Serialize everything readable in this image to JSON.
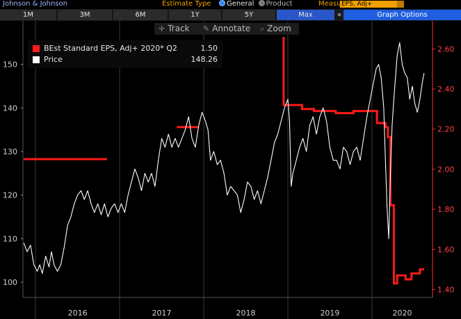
{
  "header": {
    "company": "Johnson & Johnson",
    "estimate_type_label": "Estimate Type",
    "estimate_options": [
      "General",
      "Product"
    ],
    "estimate_selected": "General",
    "measure_label": "Measure",
    "measure_value": "EPS, Adj+"
  },
  "range_buttons": [
    {
      "label": "1M",
      "active": false
    },
    {
      "label": "3M",
      "active": false
    },
    {
      "label": "6M",
      "active": false
    },
    {
      "label": "1Y",
      "active": false
    },
    {
      "label": "5Y",
      "active": false
    },
    {
      "label": "Max",
      "active": true
    }
  ],
  "graph_options_label": "Graph Options",
  "collapse_glyph": "«",
  "toolbar": {
    "track_label": "Track",
    "annotate_label": "Annotate",
    "zoom_label": "Zoom",
    "track_icon": "crosshair-icon",
    "annotate_icon": "pencil-icon",
    "zoom_icon": "magnifier-icon"
  },
  "legend": {
    "eps_label": "BEst Standard EPS, Adj+ 2020* Q2",
    "eps_value": "1.50",
    "price_label": "Price",
    "price_value": "148.26"
  },
  "colors": {
    "eps": "#ff1a1a",
    "price": "#ffffff",
    "right_axis": "#ff3333",
    "accent_orange": "#f0a000",
    "active_blue": "#1f5fe0"
  },
  "chart_data": {
    "type": "line",
    "x_axis": {
      "labels": [
        "2016",
        "2017",
        "2018",
        "2019",
        "2020"
      ],
      "range": [
        2015.85,
        2020.72
      ]
    },
    "left_axis": {
      "ticks": [
        100,
        110,
        120,
        130,
        140,
        150
      ],
      "range": [
        96.5,
        160
      ]
    },
    "right_axis": {
      "ticks": [
        "1.40",
        "1.60",
        "1.80",
        "2.00",
        "2.20",
        "2.40",
        "2.60"
      ],
      "range": [
        1.36,
        2.74
      ]
    },
    "grid": false,
    "legend_position": "top-left",
    "series": [
      {
        "name": "BEst Standard EPS, Adj+ 2020* Q2",
        "axis": "right",
        "style": "step",
        "segments": [
          [
            [
              2015.86,
              2.05
            ],
            [
              2016.85,
              2.05
            ]
          ],
          [
            [
              2017.68,
              2.21
            ],
            [
              2017.94,
              2.21
            ]
          ],
          [
            [
              2018.95,
              2.66
            ],
            [
              2018.95,
              2.32
            ],
            [
              2019.17,
              2.32
            ],
            [
              2019.17,
              2.3
            ],
            [
              2019.31,
              2.3
            ],
            [
              2019.31,
              2.29
            ],
            [
              2019.57,
              2.29
            ],
            [
              2019.57,
              2.28
            ],
            [
              2019.78,
              2.28
            ],
            [
              2019.78,
              2.29
            ],
            [
              2020.06,
              2.29
            ],
            [
              2020.06,
              2.23
            ],
            [
              2020.16,
              2.23
            ],
            [
              2020.16,
              2.21
            ],
            [
              2020.19,
              2.21
            ],
            [
              2020.19,
              2.16
            ],
            [
              2020.22,
              2.16
            ],
            [
              2020.22,
              1.82
            ],
            [
              2020.26,
              1.82
            ],
            [
              2020.26,
              1.43
            ],
            [
              2020.3,
              1.43
            ],
            [
              2020.3,
              1.47
            ],
            [
              2020.4,
              1.47
            ],
            [
              2020.4,
              1.45
            ],
            [
              2020.47,
              1.45
            ],
            [
              2020.47,
              1.48
            ],
            [
              2020.57,
              1.48
            ],
            [
              2020.57,
              1.5
            ],
            [
              2020.62,
              1.5
            ]
          ]
        ]
      },
      {
        "name": "Price",
        "axis": "left",
        "style": "line",
        "points": [
          [
            2015.86,
            109
          ],
          [
            2015.9,
            107
          ],
          [
            2015.94,
            108.5
          ],
          [
            2015.98,
            104
          ],
          [
            2016.02,
            102.5
          ],
          [
            2016.05,
            104
          ],
          [
            2016.08,
            102
          ],
          [
            2016.12,
            106
          ],
          [
            2016.16,
            103.5
          ],
          [
            2016.19,
            107
          ],
          [
            2016.22,
            104
          ],
          [
            2016.26,
            102.5
          ],
          [
            2016.3,
            104
          ],
          [
            2016.34,
            108
          ],
          [
            2016.38,
            113
          ],
          [
            2016.42,
            115
          ],
          [
            2016.46,
            118
          ],
          [
            2016.5,
            120
          ],
          [
            2016.54,
            121
          ],
          [
            2016.58,
            119
          ],
          [
            2016.62,
            121
          ],
          [
            2016.66,
            118
          ],
          [
            2016.7,
            116
          ],
          [
            2016.74,
            118
          ],
          [
            2016.78,
            115.5
          ],
          [
            2016.82,
            118
          ],
          [
            2016.86,
            115
          ],
          [
            2016.9,
            117
          ],
          [
            2016.94,
            118
          ],
          [
            2016.98,
            116
          ],
          [
            2017.02,
            118
          ],
          [
            2017.06,
            116
          ],
          [
            2017.1,
            120
          ],
          [
            2017.14,
            123
          ],
          [
            2017.18,
            126
          ],
          [
            2017.22,
            124
          ],
          [
            2017.26,
            121
          ],
          [
            2017.3,
            125
          ],
          [
            2017.34,
            123
          ],
          [
            2017.38,
            125
          ],
          [
            2017.42,
            122
          ],
          [
            2017.46,
            128
          ],
          [
            2017.5,
            133
          ],
          [
            2017.54,
            131
          ],
          [
            2017.58,
            134
          ],
          [
            2017.62,
            131
          ],
          [
            2017.66,
            133
          ],
          [
            2017.7,
            131
          ],
          [
            2017.74,
            133
          ],
          [
            2017.78,
            135
          ],
          [
            2017.82,
            138
          ],
          [
            2017.86,
            133
          ],
          [
            2017.9,
            131
          ],
          [
            2017.94,
            136
          ],
          [
            2017.98,
            139
          ],
          [
            2018.02,
            137
          ],
          [
            2018.05,
            135
          ],
          [
            2018.08,
            128
          ],
          [
            2018.12,
            130
          ],
          [
            2018.16,
            127
          ],
          [
            2018.2,
            128
          ],
          [
            2018.24,
            125
          ],
          [
            2018.28,
            120
          ],
          [
            2018.32,
            122
          ],
          [
            2018.36,
            121
          ],
          [
            2018.4,
            120
          ],
          [
            2018.44,
            116
          ],
          [
            2018.48,
            119
          ],
          [
            2018.52,
            123
          ],
          [
            2018.56,
            122
          ],
          [
            2018.6,
            119
          ],
          [
            2018.64,
            121
          ],
          [
            2018.68,
            118
          ],
          [
            2018.72,
            121
          ],
          [
            2018.76,
            124
          ],
          [
            2018.8,
            128
          ],
          [
            2018.84,
            132
          ],
          [
            2018.88,
            134
          ],
          [
            2018.92,
            137
          ],
          [
            2018.96,
            140
          ],
          [
            2019.0,
            142
          ],
          [
            2019.02,
            137
          ],
          [
            2019.04,
            122
          ],
          [
            2019.06,
            125
          ],
          [
            2019.1,
            128
          ],
          [
            2019.14,
            131
          ],
          [
            2019.18,
            133
          ],
          [
            2019.22,
            130
          ],
          [
            2019.26,
            136
          ],
          [
            2019.3,
            138
          ],
          [
            2019.34,
            134
          ],
          [
            2019.38,
            138
          ],
          [
            2019.42,
            140
          ],
          [
            2019.46,
            137
          ],
          [
            2019.5,
            131
          ],
          [
            2019.54,
            128
          ],
          [
            2019.58,
            128
          ],
          [
            2019.62,
            126
          ],
          [
            2019.66,
            131
          ],
          [
            2019.7,
            130
          ],
          [
            2019.74,
            127
          ],
          [
            2019.78,
            130
          ],
          [
            2019.82,
            131
          ],
          [
            2019.86,
            128
          ],
          [
            2019.9,
            133
          ],
          [
            2019.94,
            138
          ],
          [
            2019.98,
            142
          ],
          [
            2020.02,
            146
          ],
          [
            2020.05,
            149
          ],
          [
            2020.08,
            150
          ],
          [
            2020.11,
            147
          ],
          [
            2020.14,
            140
          ],
          [
            2020.16,
            128
          ],
          [
            2020.18,
            117
          ],
          [
            2020.2,
            110
          ],
          [
            2020.22,
            125
          ],
          [
            2020.24,
            136
          ],
          [
            2020.26,
            142
          ],
          [
            2020.28,
            147
          ],
          [
            2020.3,
            152
          ],
          [
            2020.33,
            155
          ],
          [
            2020.36,
            150
          ],
          [
            2020.39,
            148
          ],
          [
            2020.42,
            147
          ],
          [
            2020.45,
            142
          ],
          [
            2020.48,
            145
          ],
          [
            2020.51,
            141
          ],
          [
            2020.54,
            139
          ],
          [
            2020.57,
            142
          ],
          [
            2020.6,
            146
          ],
          [
            2020.62,
            148
          ]
        ]
      }
    ]
  }
}
